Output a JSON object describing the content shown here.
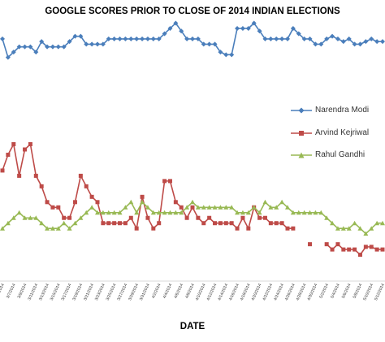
{
  "chart_data": {
    "type": "line",
    "title": "GOOGLE SCORES PRIOR TO CLOSE OF 2014 INDIAN ELECTIONS",
    "xlabel": "DATE",
    "ylabel": "",
    "ylim": [
      0,
      100
    ],
    "grid": false,
    "legend_position": "right",
    "categories": [
      "3/5/2014",
      "3/6/2014",
      "3/7/2014",
      "3/8/2014",
      "3/9/2014",
      "3/10/2014",
      "3/11/2014",
      "3/12/2014",
      "3/13/2014",
      "3/14/2014",
      "3/15/2014",
      "3/16/2014",
      "3/17/2014",
      "3/18/2014",
      "3/19/2014",
      "3/20/2014",
      "3/21/2014",
      "3/22/2014",
      "3/23/2014",
      "3/24/2014",
      "3/25/2014",
      "3/26/2014",
      "3/27/2014",
      "3/28/2014",
      "3/29/2014",
      "3/30/2014",
      "3/31/2014",
      "4/1/2014",
      "4/2/2014",
      "4/3/2014",
      "4/4/2014",
      "4/5/2014",
      "4/6/2014",
      "4/7/2014",
      "4/8/2014",
      "4/9/2014",
      "4/10/2014",
      "4/11/2014",
      "4/12/2014",
      "4/13/2014",
      "4/14/2014",
      "4/15/2014",
      "4/16/2014",
      "4/17/2014",
      "4/18/2014",
      "4/19/2014",
      "4/20/2014",
      "4/21/2014",
      "4/22/2014",
      "4/23/2014",
      "4/24/2014",
      "4/25/2014",
      "4/26/2014",
      "4/27/2014",
      "4/28/2014",
      "4/29/2014",
      "4/30/2014",
      "5/1/2014",
      "5/2/2014",
      "5/3/2014",
      "5/4/2014",
      "5/5/2014",
      "5/6/2014",
      "5/7/2014",
      "5/8/2014",
      "5/9/2014",
      "5/10/2014",
      "5/11/2014",
      "5/12/2014"
    ],
    "x_tick_labels": [
      "3/5/2014",
      "3/7/2014",
      "3/9/2014",
      "3/11/2014",
      "3/13/2014",
      "3/15/2014",
      "3/17/2014",
      "3/19/2014",
      "3/21/2014",
      "3/23/2014",
      "3/25/2014",
      "3/27/2014",
      "3/29/2014",
      "3/31/2014",
      "4/2/2014",
      "4/4/2014",
      "4/6/2014",
      "4/8/2014",
      "4/10/2014",
      "4/12/2014",
      "4/14/2014",
      "4/16/2014",
      "4/18/2014",
      "4/20/2014",
      "4/22/2014",
      "4/24/2014",
      "4/26/2014",
      "4/28/2014",
      "4/30/2014",
      "5/2/2014",
      "5/4/2014",
      "5/6/2014",
      "5/8/2014",
      "5/10/2014",
      "5/12/2014"
    ],
    "series": [
      {
        "name": "Narendra Modi",
        "color": "#4a7ebb",
        "marker": "diamond",
        "values": [
          92,
          85,
          87,
          89,
          89,
          89,
          87,
          91,
          89,
          89,
          89,
          89,
          91,
          93,
          93,
          90,
          90,
          90,
          90,
          92,
          92,
          92,
          92,
          92,
          92,
          92,
          92,
          92,
          92,
          94,
          96,
          98,
          95,
          92,
          92,
          92,
          90,
          90,
          90,
          87,
          86,
          86,
          96,
          96,
          96,
          98,
          95,
          92,
          92,
          92,
          92,
          92,
          96,
          94,
          92,
          92,
          90,
          90,
          92,
          93,
          92,
          91,
          92,
          90,
          90,
          91,
          92,
          91,
          91
        ]
      },
      {
        "name": "Arvind Kejriwal",
        "color": "#be4b48",
        "marker": "square",
        "values": [
          42,
          48,
          52,
          40,
          50,
          52,
          40,
          36,
          30,
          28,
          28,
          24,
          24,
          30,
          40,
          36,
          32,
          30,
          22,
          22,
          22,
          22,
          22,
          24,
          20,
          32,
          24,
          20,
          22,
          38,
          38,
          30,
          28,
          24,
          28,
          24,
          22,
          24,
          22,
          22,
          22,
          22,
          20,
          24,
          20,
          28,
          24,
          24,
          22,
          22,
          22,
          20,
          20,
          null,
          null,
          14,
          null,
          null,
          14,
          12,
          14,
          12,
          12,
          12,
          10,
          13,
          13,
          12,
          12
        ]
      },
      {
        "name": "Rahul Gandhi",
        "color": "#98b954",
        "marker": "triangle",
        "values": [
          20,
          22,
          24,
          26,
          24,
          24,
          24,
          22,
          20,
          20,
          20,
          22,
          20,
          22,
          24,
          26,
          28,
          26,
          26,
          26,
          26,
          26,
          28,
          30,
          26,
          30,
          28,
          26,
          26,
          26,
          26,
          26,
          26,
          28,
          30,
          28,
          28,
          28,
          28,
          28,
          28,
          28,
          26,
          26,
          26,
          28,
          26,
          30,
          28,
          28,
          30,
          28,
          26,
          26,
          26,
          26,
          26,
          26,
          24,
          22,
          20,
          20,
          20,
          22,
          20,
          18,
          20,
          22,
          22
        ]
      }
    ]
  }
}
